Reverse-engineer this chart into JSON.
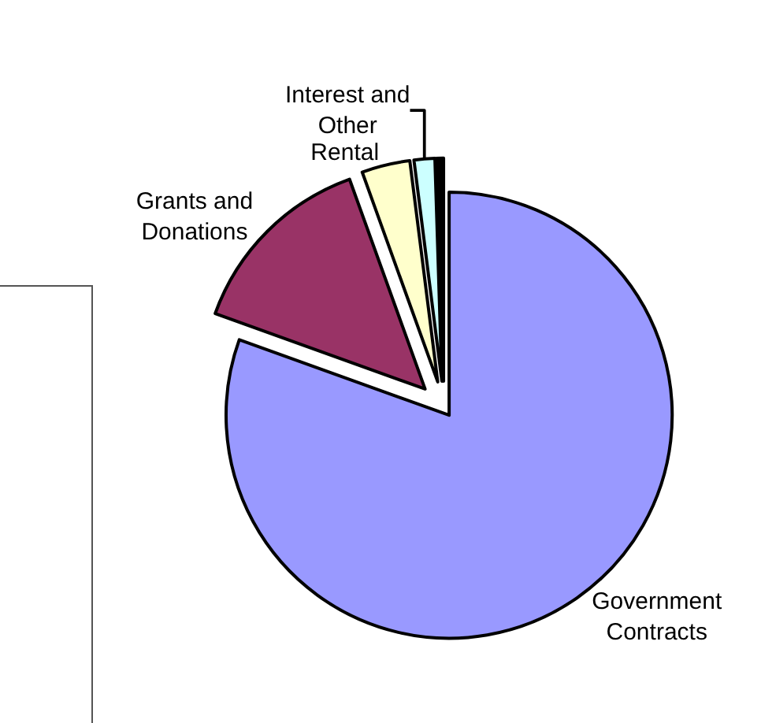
{
  "chart_data": {
    "type": "pie",
    "categories": [
      "Government Contracts",
      "Grants and Donations",
      "Rental",
      "Interest and Other",
      null
    ],
    "values": [
      80.5,
      14,
      3.5,
      1.5,
      0.5
    ],
    "colors": [
      "#9999ff",
      "#993366",
      "#ffffcc",
      "#ccffff",
      "#000000"
    ],
    "legend": false
  }
}
